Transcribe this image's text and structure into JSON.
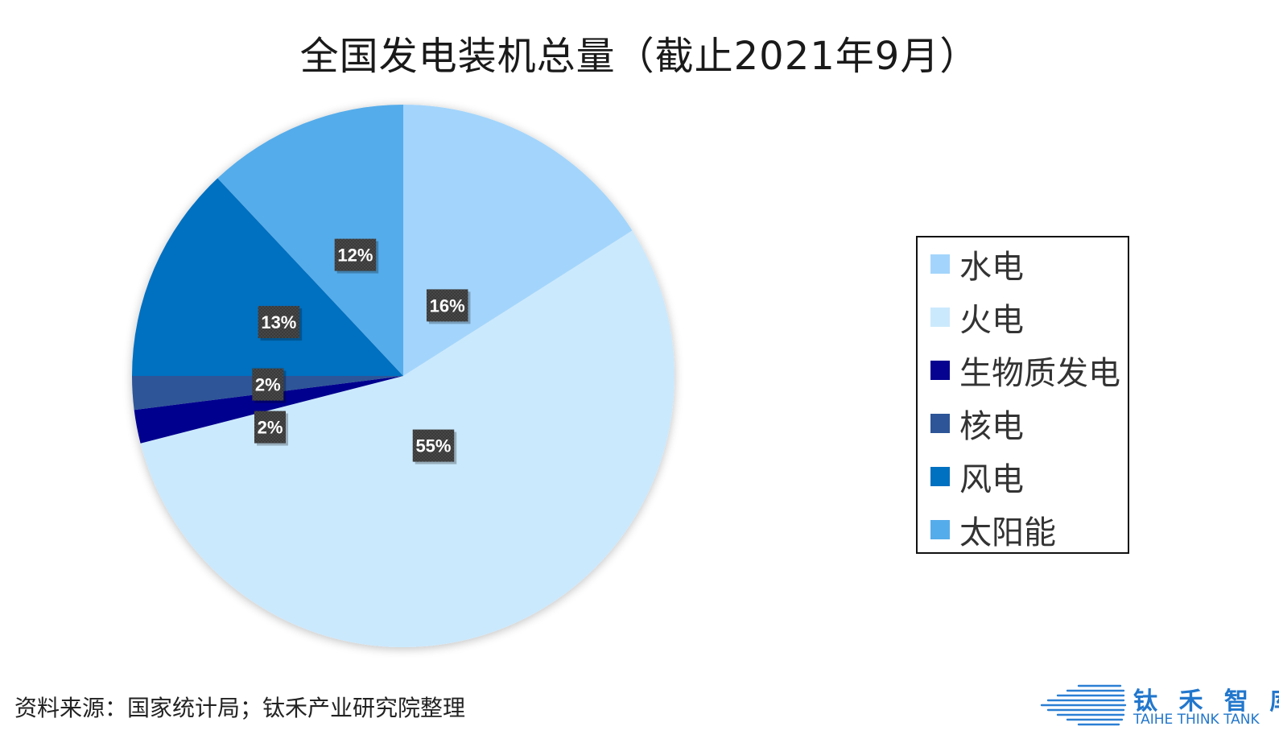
{
  "title": "全国发电装机总量（截止2021年9月）",
  "source": "资料来源：国家统计局；钛禾产业研究院整理",
  "logo": {
    "cn": "钛 禾 智 库",
    "en": "TAIHE THINK TANK"
  },
  "chart_data": {
    "type": "pie",
    "title": "全国发电装机总量（截止2021年9月）",
    "categories": [
      "水电",
      "火电",
      "生物质发电",
      "核电",
      "风电",
      "太阳能"
    ],
    "values": [
      16,
      55,
      2,
      2,
      13,
      12
    ],
    "labels": [
      "16%",
      "55%",
      "2%",
      "2%",
      "13%",
      "12%"
    ],
    "colors": [
      "#a3d5fc",
      "#cbe9fd",
      "#05038f",
      "#2d5597",
      "#0070c0",
      "#55acea"
    ],
    "start_angle": "top (12 o'clock), clockwise",
    "legend": "right"
  }
}
